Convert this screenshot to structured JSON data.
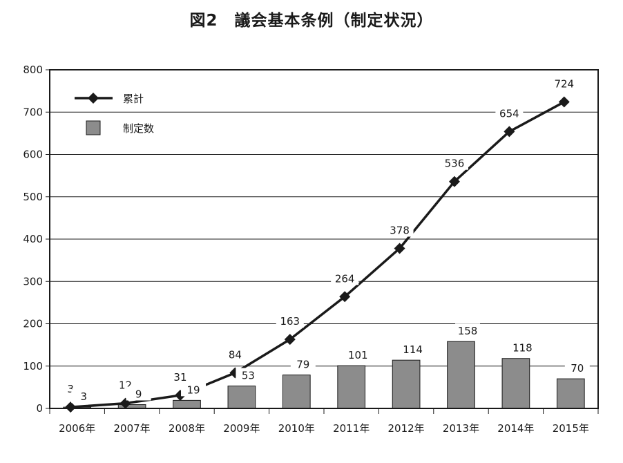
{
  "title": "図2　議会基本条例（制定状況）",
  "chart_data": {
    "type": "bar+line",
    "categories": [
      "2006年",
      "2007年",
      "2008年",
      "2009年",
      "2010年",
      "2011年",
      "2012年",
      "2013年",
      "2014年",
      "2015年"
    ],
    "series": [
      {
        "name": "制定数",
        "type": "bar",
        "values": [
          3,
          9,
          19,
          53,
          79,
          101,
          114,
          158,
          118,
          70
        ]
      },
      {
        "name": "累計",
        "type": "line",
        "values": [
          3,
          12,
          31,
          84,
          163,
          264,
          378,
          536,
          654,
          724
        ]
      }
    ],
    "ylim": [
      0,
      800
    ],
    "yticks": [
      0,
      100,
      200,
      300,
      400,
      500,
      600,
      700,
      800
    ],
    "grid": true,
    "legend": "top-left",
    "colors": {
      "bar": "#8c8c8c",
      "line": "#1a1a1a",
      "grid": "#1a1a1a"
    }
  }
}
